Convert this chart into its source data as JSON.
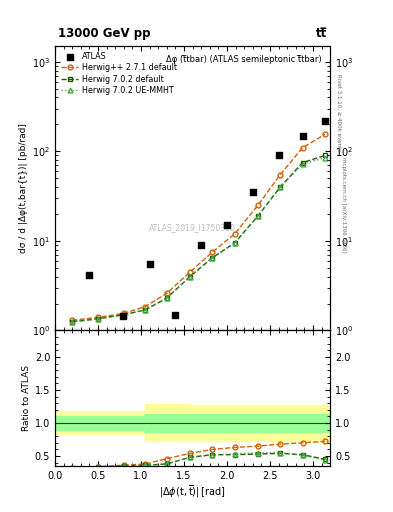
{
  "title_top": "13000 GeV pp",
  "title_right": "tt̅",
  "panel_title": "Δφ (t̅tbar) (ATLAS semileptonic t̅tbar)",
  "right_label_top": "Rivet 3.1.10, ≥ 400k events",
  "right_label_bot": "mcplots.cern.ch [arXiv:1306.3436]",
  "watermark": "ATLAS_2019_I1750330",
  "ylabel_main": "dσ / d |Δφ(t,bar{t})| [pb/rad]",
  "ylabel_ratio": "Ratio to ATLAS",
  "xlabel": "|#Delta#phi(t,bar{t})| [rad]",
  "xlim": [
    0,
    3.2
  ],
  "ylim_main": [
    1.0,
    1500
  ],
  "ylim_ratio": [
    0.35,
    2.4
  ],
  "atlas_x": [
    0.39,
    0.79,
    1.1,
    1.4,
    1.7,
    2.0,
    2.3,
    2.6,
    2.88,
    3.14
  ],
  "atlas_y": [
    4.2,
    1.45,
    5.5,
    1.5,
    9.0,
    15.0,
    35.0,
    90.0,
    150.0,
    220.0
  ],
  "herwig_pp_x": [
    0.2,
    0.5,
    0.8,
    1.05,
    1.3,
    1.57,
    1.83,
    2.09,
    2.36,
    2.62,
    2.88,
    3.14
  ],
  "herwig_pp_y": [
    1.3,
    1.4,
    1.55,
    1.85,
    2.6,
    4.5,
    7.5,
    12.0,
    25.0,
    55.0,
    110.0,
    155.0
  ],
  "herwig702_x": [
    0.2,
    0.5,
    0.8,
    1.05,
    1.3,
    1.57,
    1.83,
    2.09,
    2.36,
    2.62,
    2.88,
    3.14
  ],
  "herwig702_y": [
    1.25,
    1.35,
    1.5,
    1.7,
    2.3,
    4.0,
    6.5,
    9.5,
    19.0,
    40.0,
    75.0,
    90.0
  ],
  "herwig702ue_x": [
    0.2,
    0.5,
    0.8,
    1.05,
    1.3,
    1.57,
    1.83,
    2.09,
    2.36,
    2.62,
    2.88,
    3.14
  ],
  "herwig702ue_y": [
    1.25,
    1.35,
    1.5,
    1.7,
    2.3,
    4.0,
    6.5,
    9.5,
    19.0,
    40.0,
    72.0,
    85.0
  ],
  "herwig_pp_color": "#cc6600",
  "herwig702_color": "#225500",
  "herwig702ue_color": "#44aa44",
  "ratio_herwig_pp_x": [
    0.2,
    0.5,
    0.8,
    1.05,
    1.3,
    1.57,
    1.83,
    2.09,
    2.36,
    2.62,
    2.88,
    3.14
  ],
  "ratio_herwig_pp_y": [
    0.32,
    0.34,
    0.36,
    0.38,
    0.46,
    0.54,
    0.6,
    0.63,
    0.65,
    0.68,
    0.7,
    0.72
  ],
  "ratio_herwig702_x": [
    0.2,
    0.5,
    0.8,
    1.05,
    1.3,
    1.57,
    1.83,
    2.09,
    2.36,
    2.62,
    2.88,
    3.14
  ],
  "ratio_herwig702_y": [
    0.32,
    0.33,
    0.35,
    0.36,
    0.38,
    0.48,
    0.52,
    0.52,
    0.53,
    0.54,
    0.52,
    0.45
  ],
  "ratio_herwig702ue_x": [
    0.2,
    0.5,
    0.8,
    1.05,
    1.3,
    1.57,
    1.83,
    2.09,
    2.36,
    2.62,
    2.88,
    3.14
  ],
  "ratio_herwig702ue_y": [
    0.32,
    0.33,
    0.35,
    0.36,
    0.38,
    0.48,
    0.52,
    0.53,
    0.55,
    0.55,
    0.51,
    0.44
  ],
  "band_yellow_xedges": [
    0.0,
    1.05,
    1.57,
    3.2
  ],
  "band_yellow_lo": [
    0.83,
    0.73,
    0.73,
    0.89
  ],
  "band_yellow_hi": [
    1.18,
    1.28,
    1.27,
    1.12
  ],
  "band_green_xedges": [
    0.0,
    1.05,
    1.57,
    3.2
  ],
  "band_green_lo": [
    0.9,
    0.86,
    0.87,
    0.94
  ],
  "band_green_hi": [
    1.11,
    1.14,
    1.13,
    1.07
  ],
  "legend_entries": [
    "ATLAS",
    "Herwig++ 2.7.1 default",
    "Herwig 7.0.2 default",
    "Herwig 7.0.2 UE-MMHT"
  ],
  "atlas_color": "#000000",
  "fig_bg": "#ffffff"
}
